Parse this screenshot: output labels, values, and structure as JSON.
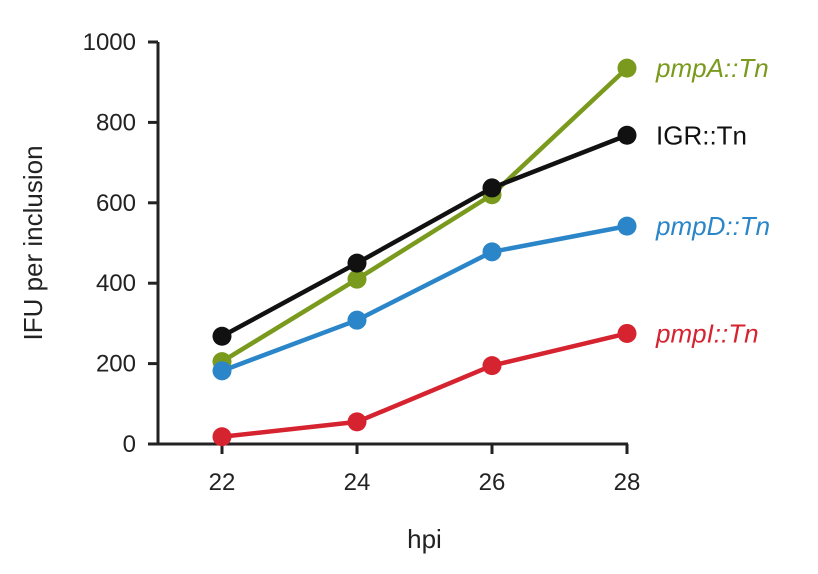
{
  "chart_data": {
    "type": "line",
    "xlabel": "hpi",
    "ylabel": "IFU per inclusion",
    "x": [
      22,
      24,
      26,
      28
    ],
    "xticks": [
      "22",
      "24",
      "26",
      "28"
    ],
    "yticks": [
      "0",
      "200",
      "400",
      "600",
      "800",
      "1000"
    ],
    "ylim": [
      0,
      1000
    ],
    "grid": false,
    "legend": "right, labels at line ends",
    "series": [
      {
        "name": "pmpA::Tn",
        "values": [
          205,
          410,
          620,
          935
        ],
        "color": "#7a9a1e",
        "italic": true
      },
      {
        "name": "IGR::Tn",
        "values": [
          268,
          450,
          637,
          768
        ],
        "color": "#111111",
        "italic": false
      },
      {
        "name": "pmpD::Tn",
        "values": [
          182,
          308,
          478,
          542
        ],
        "color": "#2a86c8",
        "italic": true
      },
      {
        "name": "pmpI::Tn",
        "values": [
          18,
          55,
          195,
          275
        ],
        "color": "#d62330",
        "italic": true
      }
    ]
  }
}
